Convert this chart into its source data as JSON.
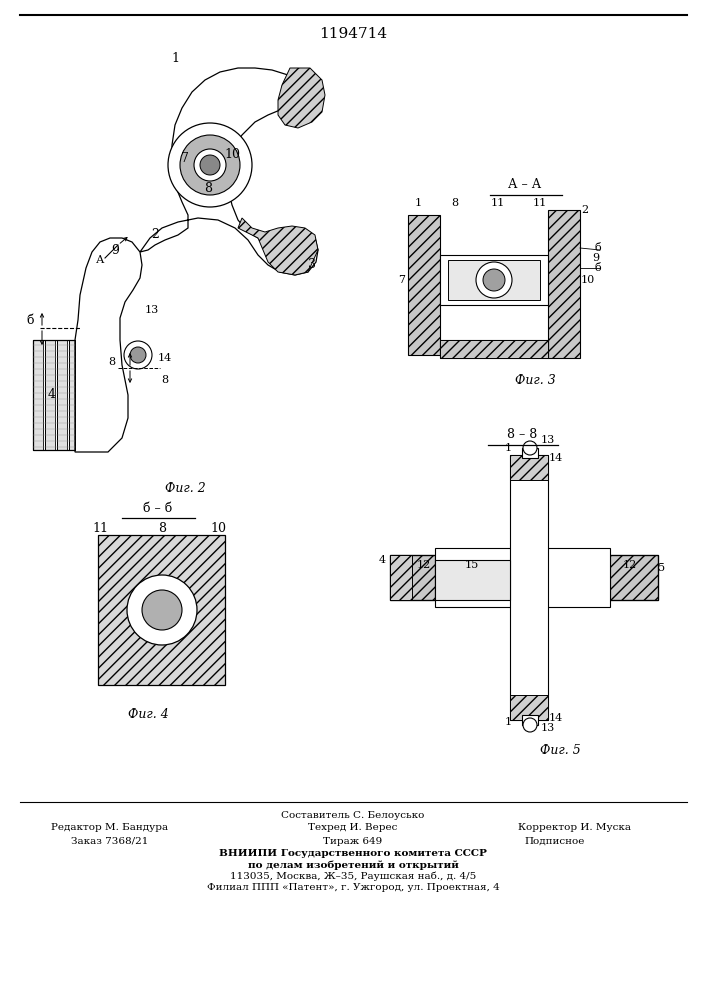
{
  "title": "1194714",
  "bg_color": "#ffffff",
  "line_color": "#000000",
  "fig2_label": "Фиг. 2",
  "fig3_label": "Фиг. 3",
  "fig4_label": "Фиг. 4",
  "fig5_label": "Фиг. 5",
  "section_aa_label": "А – А",
  "section_bb_label": "б – б",
  "section_88_label": "8 – 8",
  "footer_line1": "Составитель С. Белоусько",
  "footer_line2_left": "Редактор М. Бандура",
  "footer_line2_mid": "Техред И. Верес",
  "footer_line2_right": "Корректор И. Муска",
  "footer_line3_left": "Заказ 7368/21",
  "footer_line3_mid": "Тираж 649",
  "footer_line3_right": "Подписное",
  "footer_line4": "ВНИИПИ Государственного комитета СССР",
  "footer_line5": "по делам изобретений и открытий",
  "footer_line6": "113035, Москва, Ж–35, Раушская наб., д. 4/5",
  "footer_line7": "Филиал ППП «Патент», г. Ужгород, ул. Проектная, 4"
}
